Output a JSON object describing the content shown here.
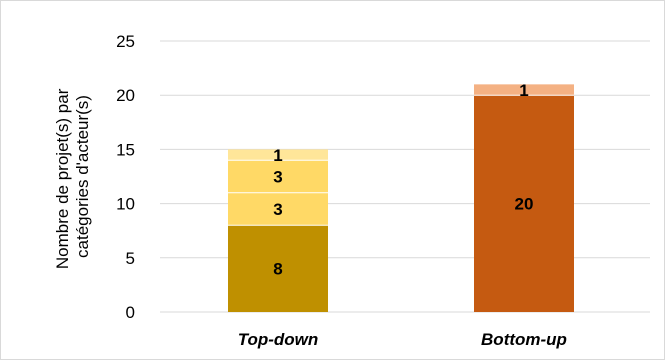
{
  "chart_data": {
    "type": "bar",
    "stacked": true,
    "categories": [
      "Top-down",
      "Bottom-up"
    ],
    "ylabel_lines": [
      "Nombre de projet(s) par",
      "catégories d'acteur(s)"
    ],
    "ylim": [
      0,
      25
    ],
    "yticks": [
      0,
      5,
      10,
      15,
      20,
      25
    ],
    "grid": true,
    "legend": "none",
    "stacks": [
      {
        "category": "Top-down",
        "segments": [
          {
            "value": 8,
            "label": "8",
            "color": "#bf9000"
          },
          {
            "value": 3,
            "label": "3",
            "color": "#ffd966"
          },
          {
            "value": 3,
            "label": "3",
            "color": "#ffd966"
          },
          {
            "value": 1,
            "label": "1",
            "color": "#ffe699"
          }
        ]
      },
      {
        "category": "Bottom-up",
        "segments": [
          {
            "value": 20,
            "label": "20",
            "color": "#c55a11"
          },
          {
            "value": 1,
            "label": "1",
            "color": "#f4b183"
          }
        ]
      }
    ]
  }
}
